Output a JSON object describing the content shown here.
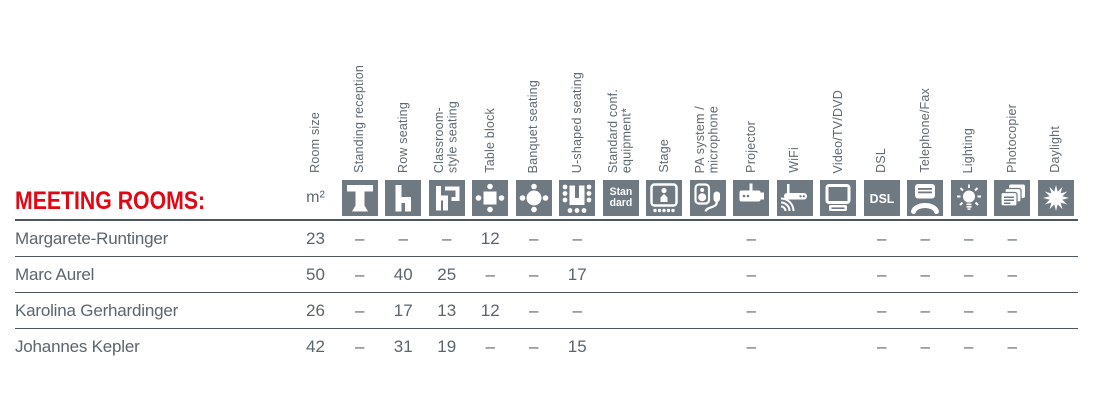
{
  "title": "MEETING ROOMS:",
  "colors": {
    "accent_red": "#E30613",
    "icon_gray": "#6F7981",
    "text_gray": "#5B656D",
    "rule_dark": "#4D575F"
  },
  "table": {
    "columns": [
      {
        "label": "Room size",
        "unit": "m²",
        "icon": ""
      },
      {
        "label": "Standing reception",
        "icon": "standing-table-icon"
      },
      {
        "label": "Row seating",
        "icon": "chair-icon"
      },
      {
        "label": "Classroom-\nstyle seating",
        "icon": "chair-desk-icon"
      },
      {
        "label": "Table block",
        "icon": "table-block-icon"
      },
      {
        "label": "Banquet seating",
        "icon": "banquet-table-icon"
      },
      {
        "label": "U-shaped seating",
        "icon": "u-shape-seating-icon"
      },
      {
        "label": "Standard conf.\nequipment*",
        "icon": "standard-badge-icon",
        "icon_text": "Stan\ndard"
      },
      {
        "label": "Stage",
        "icon": "stage-icon"
      },
      {
        "label": "PA system /\nmicrophone",
        "icon": "pa-microphone-icon"
      },
      {
        "label": "Projector",
        "icon": "projector-icon"
      },
      {
        "label": "WiFi",
        "icon": "wifi-router-icon"
      },
      {
        "label": "Video/TV/DVD",
        "icon": "tv-monitor-icon"
      },
      {
        "label": "DSL",
        "icon": "dsl-badge-icon",
        "icon_text": "DSL"
      },
      {
        "label": "Telephone/Fax",
        "icon": "telephone-fax-icon"
      },
      {
        "label": "Lighting",
        "icon": "lighting-bulb-icon"
      },
      {
        "label": "Photocopier",
        "icon": "photocopier-icon"
      },
      {
        "label": "Daylight",
        "icon": "sun-icon"
      }
    ],
    "rows": [
      {
        "name": "Margarete-Runtinger",
        "values": [
          "23",
          "–",
          "–",
          "–",
          "12",
          "–",
          "–",
          "●",
          "",
          "●",
          "–",
          "●",
          "●",
          "–",
          "–",
          "–",
          "–",
          "●"
        ]
      },
      {
        "name": "Marc Aurel",
        "values": [
          "50",
          "–",
          "40",
          "25",
          "–",
          "–",
          "17",
          "●",
          "",
          "●",
          "–",
          "●",
          "●",
          "–",
          "–",
          "–",
          "–",
          "●"
        ]
      },
      {
        "name": "Karolina Gerhardinger",
        "values": [
          "26",
          "–",
          "17",
          "13",
          "12",
          "–",
          "–",
          "●",
          "",
          "●",
          "–",
          "●",
          "●",
          "–",
          "–",
          "–",
          "–",
          "●"
        ]
      },
      {
        "name": "Johannes Kepler",
        "values": [
          "42",
          "–",
          "31",
          "19",
          "–",
          "–",
          "15",
          "●",
          "",
          "●",
          "–",
          "●",
          "●",
          "–",
          "–",
          "–",
          "–",
          "●"
        ]
      }
    ]
  }
}
